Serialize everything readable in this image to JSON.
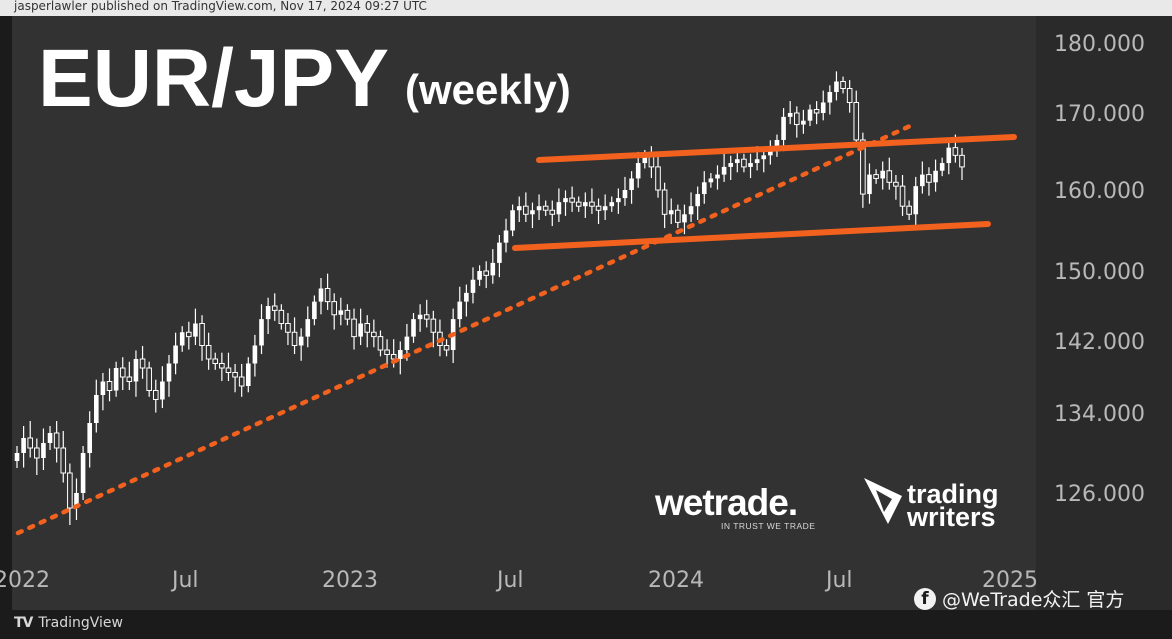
{
  "header": {
    "publisher_line": "jasperlawler published on TradingView.com, Nov 17, 2024 09:27 UTC"
  },
  "footer": {
    "platform": "TradingView",
    "social_handle": "@WeTrade众汇 官方"
  },
  "brands": {
    "wetrade": "wetrade.",
    "wetrade_tagline": "IN TRUST WE TRADE",
    "tw_line1": "trading",
    "tw_line2": "writers"
  },
  "colors": {
    "panel_bg": "#323232",
    "up_candle": "#ffffff",
    "down_candle": "#ffffff",
    "trend_line": "#f2621e",
    "text": "#e6e6e6",
    "axis_text": "#b8b8b8"
  },
  "chart_data": {
    "type": "candlestick",
    "title": "EUR/JPY",
    "subtitle": "(weekly)",
    "x_ticks": [
      "2022",
      "Jul",
      "2023",
      "Jul",
      "2024",
      "Jul",
      "2025"
    ],
    "y_ticks": [
      "180.000",
      "170.000",
      "160.000",
      "150.000",
      "142.000",
      "134.000",
      "126.000"
    ],
    "ylim": [
      120,
      182
    ],
    "grid": false,
    "closes": [
      130,
      131.5,
      130.5,
      129.5,
      131,
      132,
      130.5,
      128,
      124.5,
      126,
      130,
      133,
      136,
      137.5,
      136.5,
      139,
      138,
      137.5,
      140,
      139,
      136.5,
      135.5,
      137.5,
      139.5,
      141.5,
      143,
      142.5,
      144,
      141.5,
      140,
      139.5,
      139,
      138.5,
      138,
      137,
      139.5,
      141.5,
      144.5,
      146,
      145.5,
      144,
      143,
      141.5,
      142.5,
      144.5,
      146.5,
      148,
      146.5,
      145,
      145.5,
      144.5,
      142.5,
      144,
      143,
      142.5,
      141,
      140.5,
      140,
      141,
      142.5,
      144.5,
      145,
      144.5,
      143,
      141.5,
      141,
      144.5,
      146.5,
      147.5,
      149,
      150,
      149.5,
      151,
      153.5,
      155,
      157.5,
      158,
      157,
      157.5,
      158,
      157.5,
      157,
      158.5,
      159,
      158.5,
      158,
      158.5,
      158,
      157.5,
      158,
      158.5,
      159,
      160,
      161.5,
      163.5,
      164.5,
      163,
      160,
      157,
      157.5,
      156,
      157,
      158,
      159.5,
      161,
      161.5,
      162,
      163,
      163.5,
      164,
      163,
      163.5,
      164,
      164.5,
      165,
      166.5,
      169.5,
      170,
      168.5,
      169,
      170.5,
      170,
      171.5,
      173,
      174.5,
      173.5,
      171.5,
      166.5,
      159.5,
      162,
      161.5,
      162.5,
      161,
      160.5,
      158,
      157,
      160.5,
      162,
      161,
      162.5,
      163.5,
      165.5,
      164.5,
      163
    ]
  }
}
